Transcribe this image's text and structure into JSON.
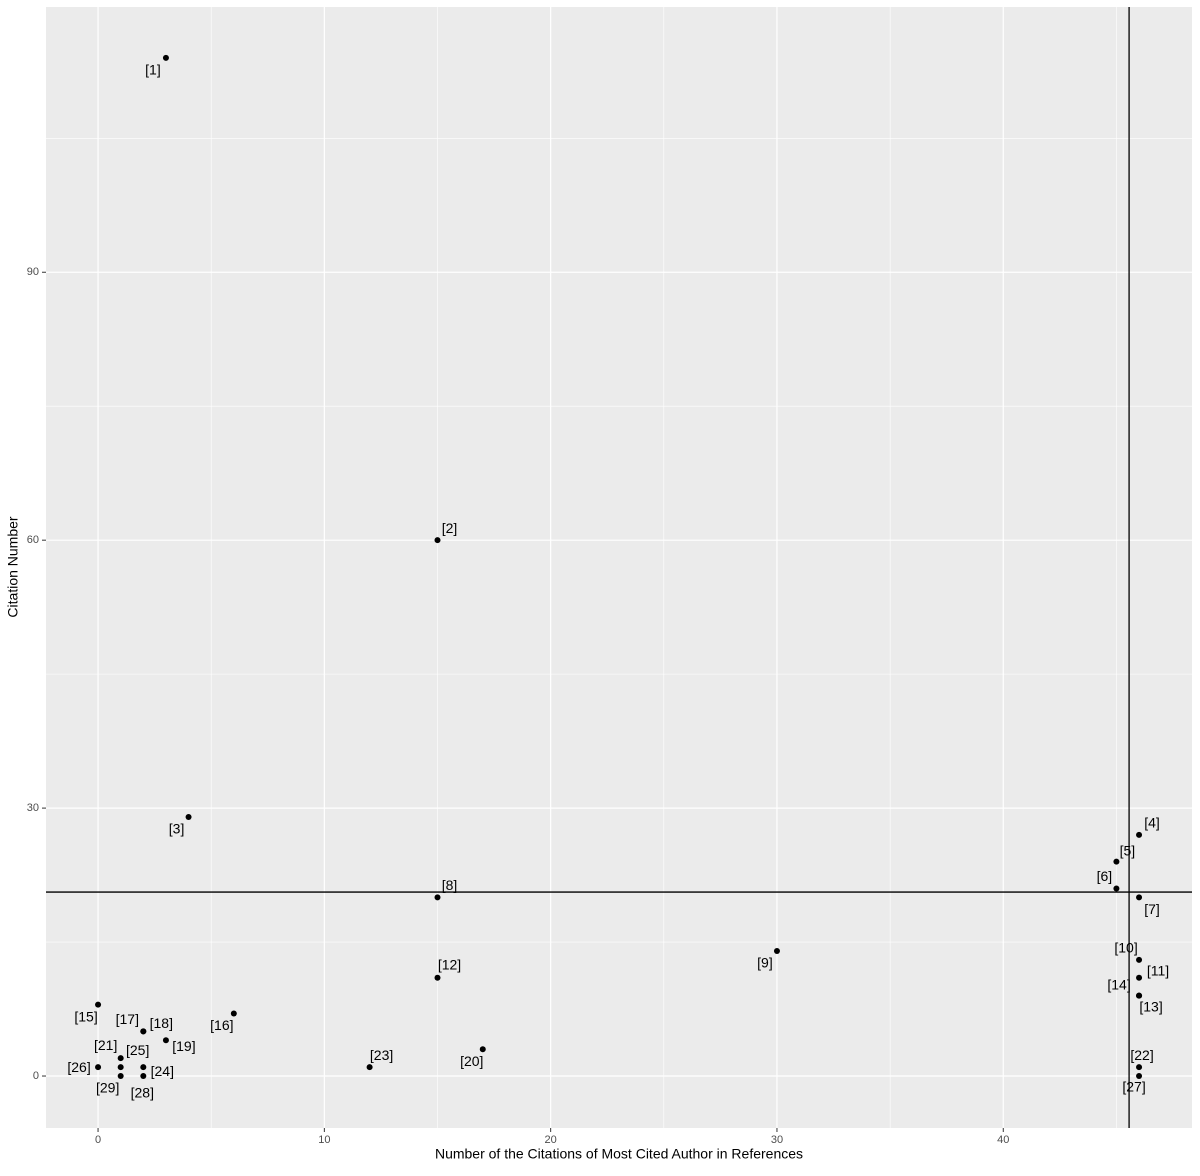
{
  "chart_data": {
    "type": "scatter",
    "x_label": "Number of the Citations of Most Cited Author in References",
    "y_label": "Citation Number",
    "labels": [
      "[1]",
      "[2]",
      "[3]",
      "[4]",
      "[5]",
      "[6]",
      "[7]",
      "[8]",
      "[9]",
      "[10]",
      "[11]",
      "[12]",
      "[13]",
      "[14]",
      "[15]",
      "[16]",
      "[17]",
      "[18]",
      "[19]",
      "[20]",
      "[21]",
      "[22]",
      "[23]",
      "[24]",
      "[25]",
      "[26]",
      "[27]",
      "[28]",
      "[29]"
    ],
    "x": [
      3,
      15,
      4,
      46,
      45,
      45,
      46,
      15,
      30,
      46,
      46,
      15,
      46,
      46,
      0,
      6,
      2,
      2,
      3,
      17,
      1,
      46,
      12,
      2,
      1,
      0,
      46,
      2,
      1
    ],
    "y": [
      114,
      60,
      29,
      27,
      24,
      21,
      20,
      20,
      14,
      13,
      11,
      11,
      9,
      9,
      8,
      7,
      5,
      5,
      4,
      3,
      2,
      1,
      1,
      1,
      1,
      1,
      0,
      0,
      0
    ],
    "color": "#000000",
    "vline": 45.56,
    "hline": 20.6,
    "xlim": [
      -2.3,
      48.34
    ],
    "ylim": [
      -5.82,
      119.7
    ],
    "xticks": [
      0,
      10,
      20,
      30,
      40
    ],
    "yticks": [
      0,
      30,
      60,
      90
    ],
    "grid": true
  }
}
